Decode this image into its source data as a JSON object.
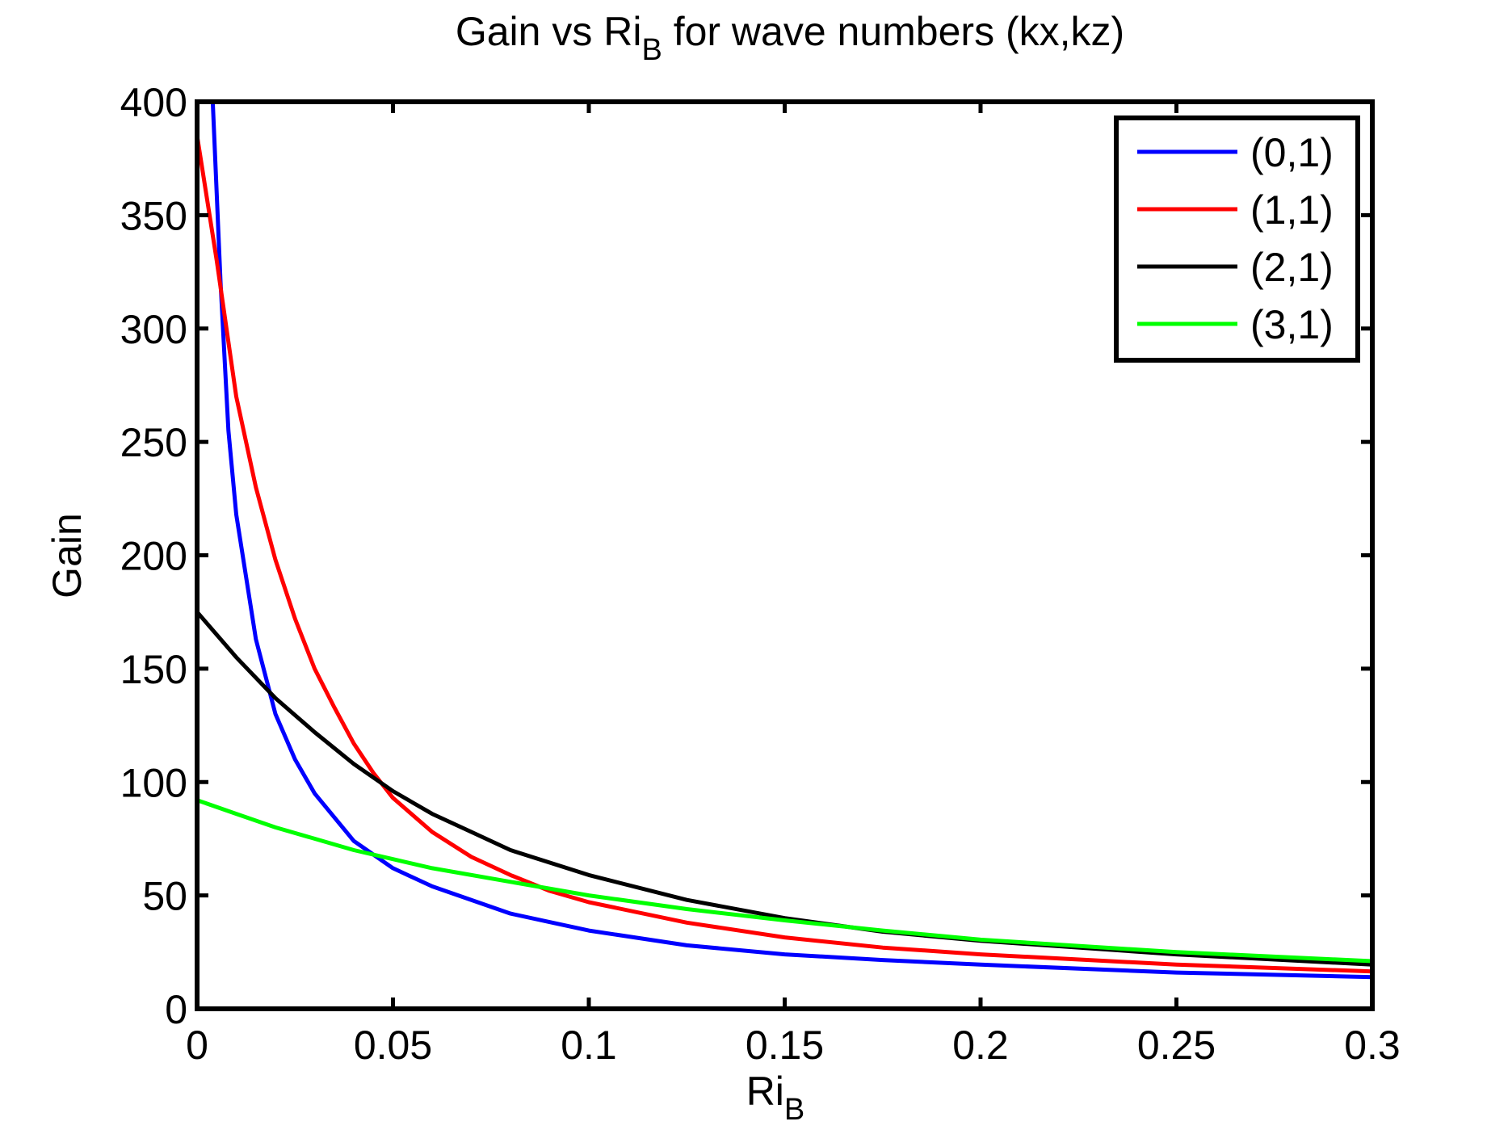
{
  "chart_data": {
    "type": "line",
    "title": "Gain vs Ri",
    "title_subscript": "B",
    "title_suffix": " for wave numbers (kx,kz)",
    "xlabel": "Ri",
    "xlabel_subscript": "B",
    "ylabel": "Gain",
    "xlim": [
      0,
      0.3
    ],
    "ylim": [
      0,
      400
    ],
    "xticks": [
      0,
      0.05,
      0.1,
      0.15,
      0.2,
      0.25,
      0.3
    ],
    "xtick_labels": [
      "0",
      "0.05",
      "0.1",
      "0.15",
      "0.2",
      "0.25",
      "0.3"
    ],
    "yticks": [
      0,
      50,
      100,
      150,
      200,
      250,
      300,
      350,
      400
    ],
    "ytick_labels": [
      "0",
      "50",
      "100",
      "150",
      "200",
      "250",
      "300",
      "350",
      "400"
    ],
    "grid": false,
    "legend_position": "top-right",
    "series": [
      {
        "name": "(0,1)",
        "color": "#0000ff",
        "x": [
          0.004,
          0.006,
          0.008,
          0.01,
          0.015,
          0.02,
          0.025,
          0.03,
          0.04,
          0.05,
          0.06,
          0.08,
          0.1,
          0.125,
          0.15,
          0.175,
          0.2,
          0.25,
          0.3
        ],
        "y": [
          400,
          320,
          255,
          218,
          163,
          130,
          110,
          95,
          74,
          62,
          54,
          42,
          34.5,
          28,
          24,
          21.5,
          19.5,
          16,
          14
        ]
      },
      {
        "name": "(1,1)",
        "color": "#ff0000",
        "x": [
          0,
          0.005,
          0.01,
          0.015,
          0.02,
          0.025,
          0.03,
          0.035,
          0.04,
          0.045,
          0.05,
          0.06,
          0.07,
          0.08,
          0.09,
          0.1,
          0.125,
          0.15,
          0.175,
          0.2,
          0.25,
          0.3
        ],
        "y": [
          385,
          330,
          270,
          230,
          198,
          172,
          150,
          133,
          117,
          104,
          93,
          78,
          67,
          59,
          52,
          47,
          38,
          31.5,
          27,
          24,
          19.5,
          16.5
        ]
      },
      {
        "name": "(2,1)",
        "color": "#000000",
        "x": [
          0,
          0.01,
          0.02,
          0.03,
          0.04,
          0.05,
          0.06,
          0.07,
          0.08,
          0.1,
          0.125,
          0.15,
          0.175,
          0.2,
          0.25,
          0.3
        ],
        "y": [
          175,
          155,
          137,
          122,
          108,
          96,
          86,
          78,
          70,
          59,
          48,
          40,
          34,
          30,
          24,
          19.5
        ]
      },
      {
        "name": "(3,1)",
        "color": "#00ff00",
        "x": [
          0,
          0.01,
          0.02,
          0.03,
          0.04,
          0.05,
          0.06,
          0.08,
          0.1,
          0.125,
          0.15,
          0.175,
          0.2,
          0.25,
          0.3
        ],
        "y": [
          92,
          86,
          80,
          75,
          70,
          66,
          62,
          56,
          50,
          44,
          39,
          34.5,
          30.5,
          25,
          21
        ]
      }
    ]
  }
}
